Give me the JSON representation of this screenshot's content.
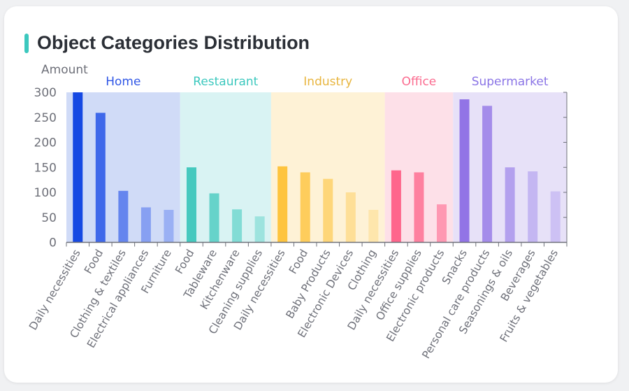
{
  "title": "Object Categories Distribution",
  "colors": {
    "accent": "#3cc8be"
  },
  "chart_data": {
    "type": "bar",
    "title": "Object Categories Distribution",
    "ylabel": "Amount",
    "ylim": [
      0,
      300
    ],
    "yticks": [
      0,
      50,
      100,
      150,
      200,
      250,
      300
    ],
    "grid": false,
    "groups": [
      {
        "name": "Home",
        "label_color": "#2f56e6",
        "band_color": "#d0dbf7",
        "bar_colors": [
          "#1649e3",
          "#3f68ea",
          "#6585ee",
          "#87a0f2",
          "#9ab0f4"
        ],
        "categories": [
          "Daily necessities",
          "Food",
          "Clothing & textiles",
          "Electrical appliances",
          "Furniture"
        ],
        "values": [
          300,
          259,
          103,
          70,
          65
        ]
      },
      {
        "name": "Restaurant",
        "label_color": "#3cc8be",
        "band_color": "#d9f3f3",
        "bar_colors": [
          "#45c9be",
          "#66d3ca",
          "#82dcd5",
          "#9de3de"
        ],
        "categories": [
          "Food",
          "Tableware",
          "Kitchenware",
          "Cleaning supplies"
        ],
        "values": [
          150,
          98,
          66,
          52
        ]
      },
      {
        "name": "Industry",
        "label_color": "#e8b53e",
        "band_color": "#fef2d6",
        "bar_colors": [
          "#fec43e",
          "#fecd5c",
          "#fed679",
          "#fedf97",
          "#fee6ac"
        ],
        "categories": [
          "Daily necessities",
          "Food",
          "Baby Products",
          "Electronic Devices",
          "Clothing"
        ],
        "values": [
          152,
          140,
          127,
          100,
          65
        ]
      },
      {
        "name": "Office",
        "label_color": "#fb6b8f",
        "band_color": "#fde0e8",
        "bar_colors": [
          "#fe668c",
          "#fe809f",
          "#fe98b2"
        ],
        "categories": [
          "Daily necessities",
          "Office supplies",
          "Electronic products"
        ],
        "values": [
          144,
          140,
          76
        ]
      },
      {
        "name": "Supermarket",
        "label_color": "#8a74e6",
        "band_color": "#e7e1f8",
        "bar_colors": [
          "#9274e6",
          "#a48cea",
          "#b3a0ee",
          "#c4b6f2",
          "#cdc1f4"
        ],
        "categories": [
          "Snacks",
          "Personal care products",
          "Seasonings & oils",
          "Beverages",
          "Fruits & vegetables"
        ],
        "values": [
          286,
          273,
          150,
          142,
          102
        ]
      }
    ]
  }
}
